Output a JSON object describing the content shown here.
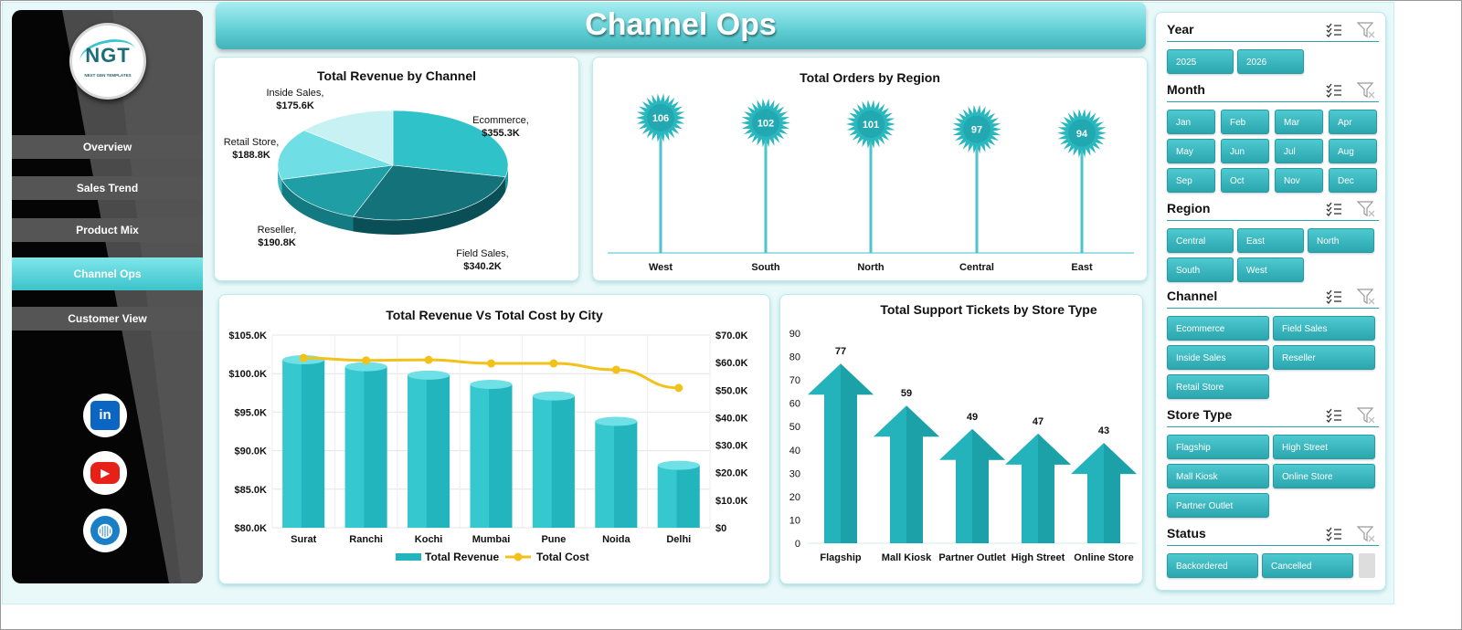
{
  "header": {
    "title": "Channel Ops"
  },
  "logo": {
    "text": "NGT",
    "subtitle": "NEXT GEN TEMPLATES"
  },
  "nav": {
    "items": [
      {
        "label": "Overview",
        "active": false
      },
      {
        "label": "Sales Trend",
        "active": false
      },
      {
        "label": "Product Mix",
        "active": false
      },
      {
        "label": "Channel Ops",
        "active": true
      },
      {
        "label": "Customer View",
        "active": false
      }
    ]
  },
  "social": {
    "linkedin_glyph": "in",
    "youtube_glyph": "▶",
    "web_glyph": "◍"
  },
  "colors": {
    "teal": "#2ab7be",
    "dark_teal": "#1a8e96",
    "gold": "#f2c21b",
    "sidebar": "#050505"
  },
  "chart_data": [
    {
      "id": "revenue_by_channel",
      "type": "pie",
      "title": "Total Revenue by Channel",
      "slices": [
        {
          "label": "Ecommerce,",
          "value_label": "$355.3K",
          "value": 355.3
        },
        {
          "label": "Field Sales,",
          "value_label": "$340.2K",
          "value": 340.2
        },
        {
          "label": "Reseller,",
          "value_label": "$190.8K",
          "value": 190.8
        },
        {
          "label": "Retail Store,",
          "value_label": "$188.8K",
          "value": 188.8
        },
        {
          "label": "Inside Sales,",
          "value_label": "$175.6K",
          "value": 175.6
        }
      ]
    },
    {
      "id": "orders_by_region",
      "type": "lollipop",
      "title": "Total Orders by Region",
      "categories": [
        "West",
        "South",
        "North",
        "Central",
        "East"
      ],
      "values": [
        106,
        102,
        101,
        97,
        94
      ]
    },
    {
      "id": "revenue_vs_cost_city",
      "type": "bar",
      "title": "Total Revenue  Vs Total Cost by City",
      "categories": [
        "Surat",
        "Ranchi",
        "Kochi",
        "Mumbai",
        "Pune",
        "Noida",
        "Delhi"
      ],
      "series": [
        {
          "name": "Total Revenue",
          "axis": "left",
          "values": [
            101.8,
            100.9,
            99.8,
            98.6,
            97.1,
            93.8,
            88.1
          ]
        },
        {
          "name": "Total Cost",
          "axis": "right",
          "type": "line",
          "values": [
            61.7,
            60.8,
            61.0,
            59.7,
            59.7,
            57.4,
            50.8
          ]
        }
      ],
      "ylim_left": [
        80,
        105
      ],
      "yticks_left": [
        "$105.0K",
        "$100.0K",
        "$95.0K",
        "$90.0K",
        "$85.0K",
        "$80.0K"
      ],
      "ylim_right": [
        0,
        70
      ],
      "yticks_right": [
        "$70.0K",
        "$60.0K",
        "$50.0K",
        "$40.0K",
        "$30.0K",
        "$20.0K",
        "$10.0K",
        "$0"
      ],
      "legend": "bottom"
    },
    {
      "id": "support_tickets_store_type",
      "type": "bar",
      "title": "Total Support Tickets by Store Type",
      "categories": [
        "Flagship",
        "Mall Kiosk",
        "Partner Outlet",
        "High Street",
        "Online Store"
      ],
      "values": [
        77,
        59,
        49,
        47,
        43
      ],
      "ylim": [
        0,
        90
      ],
      "yticks": [
        "90",
        "80",
        "70",
        "60",
        "50",
        "40",
        "30",
        "20",
        "10",
        "0"
      ]
    }
  ],
  "slicers": [
    {
      "title": "Year",
      "items": [
        "2025",
        "2026"
      ]
    },
    {
      "title": "Month",
      "items": [
        "Jan",
        "Feb",
        "Mar",
        "Apr",
        "May",
        "Jun",
        "Jul",
        "Aug",
        "Sep",
        "Oct",
        "Nov",
        "Dec"
      ]
    },
    {
      "title": "Region",
      "items": [
        "Central",
        "East",
        "North",
        "South",
        "West"
      ]
    },
    {
      "title": "Channel",
      "items": [
        "Ecommerce",
        "Field Sales",
        "Inside Sales",
        "Reseller",
        "Retail Store"
      ]
    },
    {
      "title": "Store Type",
      "items": [
        "Flagship",
        "High Street",
        "Mall Kiosk",
        "Online Store",
        "Partner Outlet"
      ]
    },
    {
      "title": "Status",
      "items": [
        "Backordered",
        "Cancelled"
      ]
    }
  ]
}
